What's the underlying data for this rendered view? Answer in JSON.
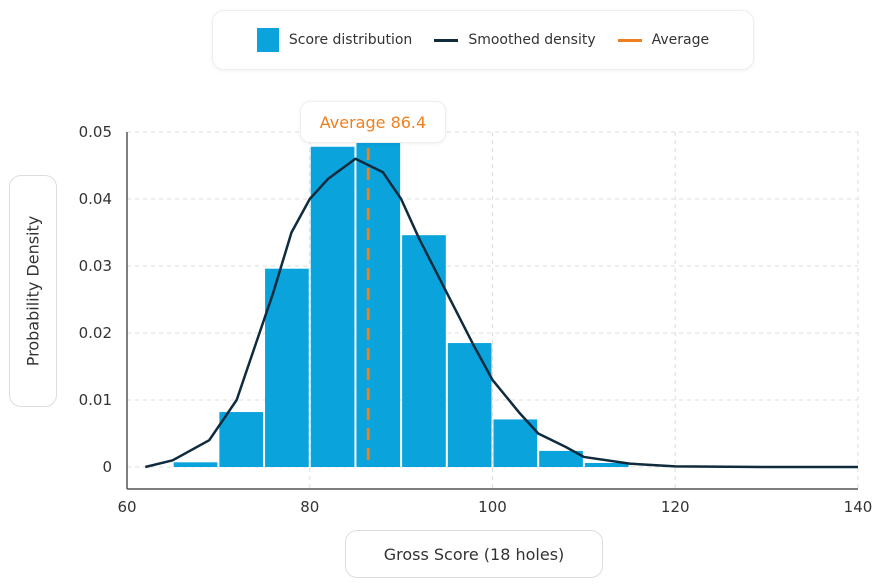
{
  "chart_data": {
    "type": "bar",
    "title": "",
    "xlabel": "Gross Score (18 holes)",
    "ylabel": "Probability Density",
    "xlim": [
      60,
      140
    ],
    "ylim": [
      0,
      0.05
    ],
    "xticks": [
      "60",
      "80",
      "100",
      "120",
      "140"
    ],
    "yticks": [
      "0",
      "0.01",
      "0.02",
      "0.03",
      "0.04",
      "0.05"
    ],
    "grid": true,
    "legend_placement": "top-center",
    "colors": {
      "bars": "#0aa3dc",
      "density": "#0f2b3d",
      "average": "#f07f1e"
    },
    "legend": [
      "Score distribution",
      "Smoothed density",
      "Average"
    ],
    "histogram": {
      "name": "Score distribution",
      "bin_edges": [
        65,
        70,
        75,
        80,
        85,
        90,
        95,
        100,
        105,
        110,
        115
      ],
      "values": [
        0.0007,
        0.0082,
        0.0296,
        0.0478,
        0.0485,
        0.0346,
        0.0185,
        0.0071,
        0.0024,
        0.0006
      ]
    },
    "density": {
      "name": "Smoothed density",
      "x": [
        62,
        65,
        69,
        72,
        74,
        76,
        78,
        80,
        82,
        85,
        88,
        90,
        92,
        95,
        98,
        100,
        103,
        105,
        108,
        110,
        115,
        120,
        130,
        140
      ],
      "y": [
        0,
        0.001,
        0.004,
        0.01,
        0.018,
        0.026,
        0.035,
        0.04,
        0.043,
        0.046,
        0.044,
        0.04,
        0.034,
        0.026,
        0.018,
        0.013,
        0.008,
        0.005,
        0.003,
        0.0015,
        0.0005,
        0.0001,
        0,
        0
      ]
    },
    "average": {
      "name": "Average",
      "value": 86.4,
      "label": "Average 86.4"
    }
  }
}
